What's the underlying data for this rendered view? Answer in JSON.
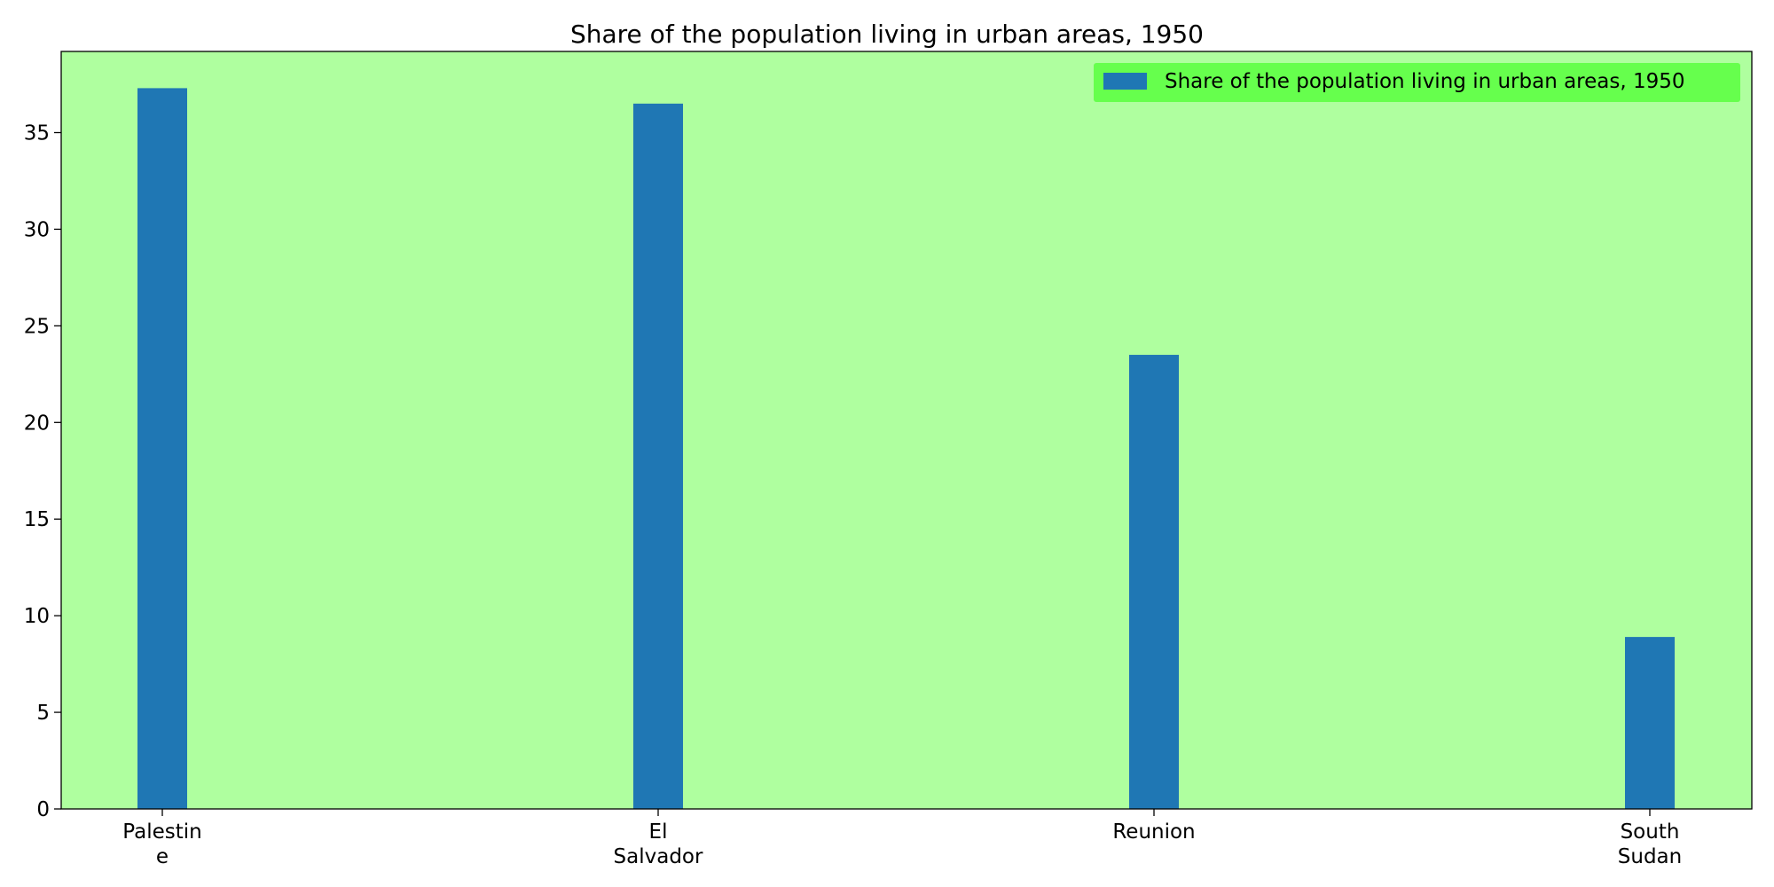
{
  "chart_data": {
    "type": "bar",
    "title": "Share of the population living in urban areas, 1950",
    "xlabel": "",
    "ylabel": "",
    "categories": [
      [
        "Palestin",
        "e"
      ],
      [
        "El",
        "Salvador"
      ],
      [
        "Reunion"
      ],
      [
        "South",
        "Sudan"
      ]
    ],
    "series": [
      {
        "name": "Share of the population living in urban areas, 1950",
        "values": [
          37.3,
          36.5,
          23.5,
          8.9
        ],
        "color": "#1f77b4"
      }
    ],
    "ylim": [
      0,
      39.2
    ],
    "yticks": [
      0,
      5,
      10,
      15,
      20,
      25,
      30,
      35
    ],
    "grid": false,
    "legend_position": "top-right",
    "plot_background": "#afff9f",
    "legend_background": "#66ff4d"
  }
}
